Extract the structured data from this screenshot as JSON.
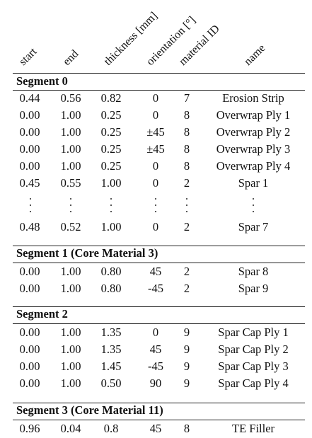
{
  "headers": {
    "start": "start",
    "end": "end",
    "thickness": "thickness [mm]",
    "orientation": "orientation [°]",
    "material": "material ID",
    "name": "name"
  },
  "segments": [
    {
      "title": "Segment 0",
      "rows": [
        {
          "start": "0.44",
          "end": "0.56",
          "thickness": "0.82",
          "orientation": "0",
          "material": "7",
          "name": "Erosion Strip"
        },
        {
          "start": "0.00",
          "end": "1.00",
          "thickness": "0.25",
          "orientation": "0",
          "material": "8",
          "name": "Overwrap Ply 1"
        },
        {
          "start": "0.00",
          "end": "1.00",
          "thickness": "0.25",
          "orientation": "±45",
          "material": "8",
          "name": "Overwrap Ply 2"
        },
        {
          "start": "0.00",
          "end": "1.00",
          "thickness": "0.25",
          "orientation": "±45",
          "material": "8",
          "name": "Overwrap Ply 3"
        },
        {
          "start": "0.00",
          "end": "1.00",
          "thickness": "0.25",
          "orientation": "0",
          "material": "8",
          "name": "Overwrap Ply 4"
        },
        {
          "start": "0.45",
          "end": "0.55",
          "thickness": "1.00",
          "orientation": "0",
          "material": "2",
          "name": "Spar 1"
        },
        {
          "start": "0.48",
          "end": "0.52",
          "thickness": "1.00",
          "orientation": "0",
          "material": "2",
          "name": "Spar 7"
        }
      ]
    },
    {
      "title": "Segment 1 (Core Material 3)",
      "rows": [
        {
          "start": "0.00",
          "end": "1.00",
          "thickness": "0.80",
          "orientation": "45",
          "material": "2",
          "name": "Spar 8"
        },
        {
          "start": "0.00",
          "end": "1.00",
          "thickness": "0.80",
          "orientation": "-45",
          "material": "2",
          "name": "Spar 9"
        }
      ]
    },
    {
      "title": "Segment 2",
      "rows": [
        {
          "start": "0.00",
          "end": "1.00",
          "thickness": "1.35",
          "orientation": "0",
          "material": "9",
          "name": "Spar Cap Ply 1"
        },
        {
          "start": "0.00",
          "end": "1.00",
          "thickness": "1.35",
          "orientation": "45",
          "material": "9",
          "name": "Spar Cap Ply 2"
        },
        {
          "start": "0.00",
          "end": "1.00",
          "thickness": "1.45",
          "orientation": "-45",
          "material": "9",
          "name": "Spar Cap Ply 3"
        },
        {
          "start": "0.00",
          "end": "1.00",
          "thickness": "0.50",
          "orientation": "90",
          "material": "9",
          "name": "Spar Cap Ply 4"
        }
      ]
    },
    {
      "title": "Segment 3 (Core Material 11)",
      "rows": [
        {
          "start": "0.96",
          "end": "0.04",
          "thickness": "0.8",
          "orientation": "45",
          "material": "8",
          "name": "TE Filler"
        }
      ]
    }
  ]
}
